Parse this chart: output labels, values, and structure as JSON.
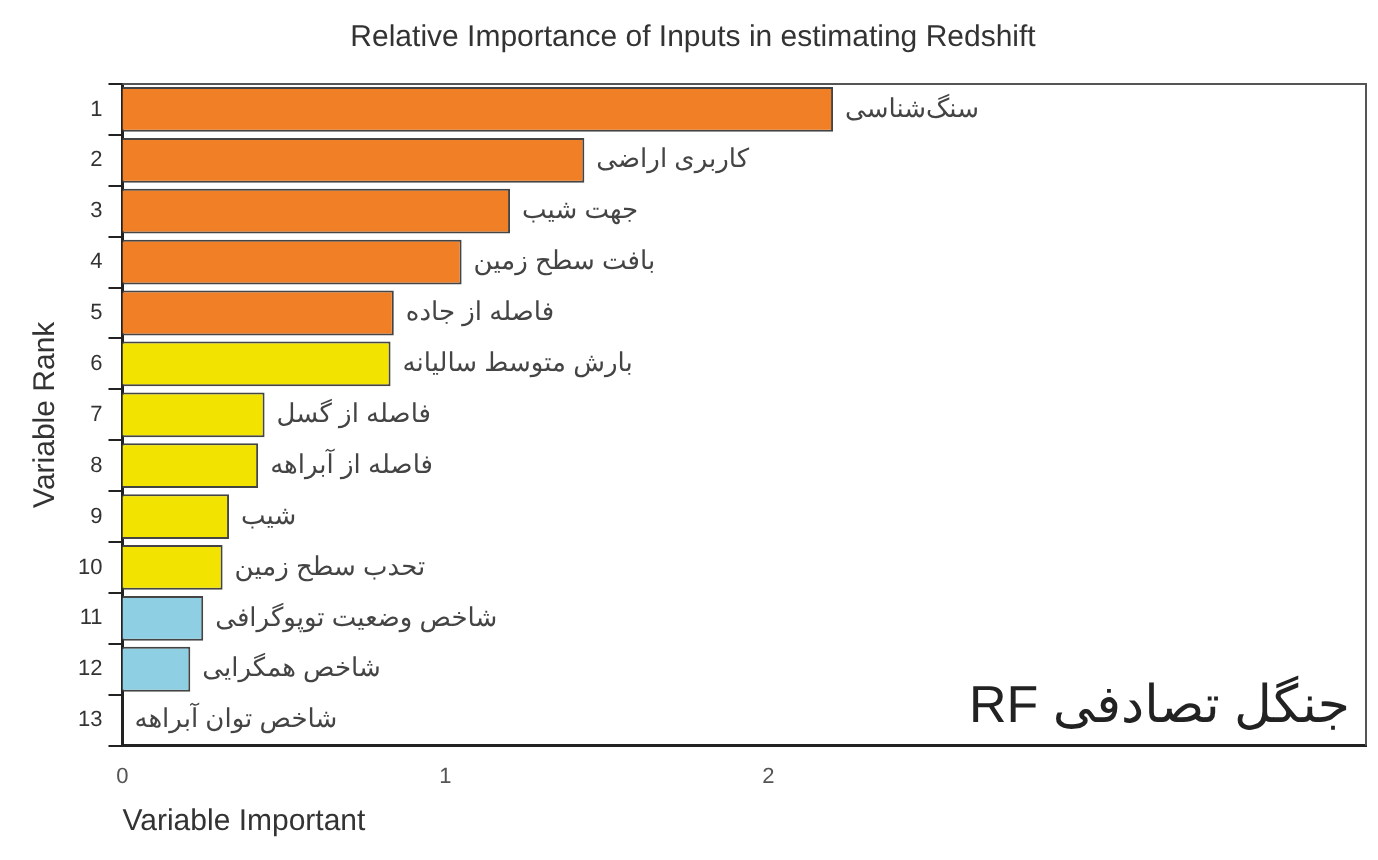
{
  "chart_data": {
    "type": "bar",
    "orientation": "horizontal",
    "title": "Relative Importance of Inputs in estimating Redshift",
    "xlabel": "Variable Important",
    "ylabel": "Variable Rank",
    "categories": [
      "1",
      "2",
      "3",
      "4",
      "5",
      "6",
      "7",
      "8",
      "9",
      "10",
      "11",
      "12",
      "13"
    ],
    "values": [
      2.2,
      1.43,
      1.2,
      1.05,
      0.84,
      0.83,
      0.44,
      0.42,
      0.33,
      0.31,
      0.25,
      0.21,
      0
    ],
    "colors": [
      "#f07f25",
      "#f07f25",
      "#f07f25",
      "#f07f25",
      "#f07f25",
      "#f2e400",
      "#f2e400",
      "#f2e400",
      "#f2e400",
      "#f2e400",
      "#8ecfe4",
      "#8ecfe4",
      "#8ecfe4"
    ],
    "xlim": [
      0,
      3.85
    ],
    "xticks": [
      0,
      1,
      2
    ],
    "grid": false,
    "legend": false,
    "annotations": [
      {
        "text": "سنگ‌شناسی",
        "x": 2.2,
        "y": "1"
      },
      {
        "text": "کاربری اراضی",
        "x": 1.43,
        "y": "2"
      },
      {
        "text": "جهت شیب",
        "x": 1.2,
        "y": "3"
      },
      {
        "text": "بافت سطح زمین",
        "x": 1.05,
        "y": "4"
      },
      {
        "text": "فاصله از جاده",
        "x": 0.84,
        "y": "5"
      },
      {
        "text": "بارش متوسط سالیانه",
        "x": 0.83,
        "y": "6"
      },
      {
        "text": "فاصله از گسل",
        "x": 0.44,
        "y": "7"
      },
      {
        "text": "فاصله از آبراهه",
        "x": 0.42,
        "y": "8"
      },
      {
        "text": "شیب",
        "x": 0.33,
        "y": "9"
      },
      {
        "text": "تحدب سطح زمین",
        "x": 0.31,
        "y": "10"
      },
      {
        "text": "شاخص وضعیت توپوگرافی",
        "x": 0.25,
        "y": "11"
      },
      {
        "text": "شاخص همگرایی",
        "x": 0.21,
        "y": "12"
      },
      {
        "text": "شاخص توان آبراهه",
        "x": 0,
        "y": "13"
      },
      "جنگل تصادفی RF"
    ]
  }
}
